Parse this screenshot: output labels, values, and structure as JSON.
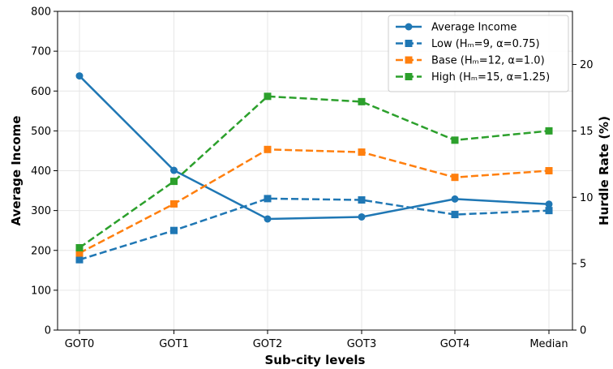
{
  "chart_data": {
    "type": "line",
    "categories": [
      "GOT0",
      "GOT1",
      "GOT2",
      "GOT3",
      "GOT4",
      "Median"
    ],
    "xlabel": "Sub-city levels",
    "ylabel": "Average Income",
    "ylabel_right": "Hurdle Rate (%)",
    "ylim": [
      0,
      800
    ],
    "ylim_right": [
      0,
      24
    ],
    "yticks": [
      "0",
      "100",
      "200",
      "300",
      "400",
      "500",
      "600",
      "700",
      "800"
    ],
    "yticks_right": [
      "0",
      "5",
      "10",
      "15",
      "20"
    ],
    "grid": true,
    "legend_position": "top-right",
    "series": [
      {
        "name": "Average Income",
        "axis": "left",
        "style": "solid",
        "marker": "circle",
        "color": "#1f77b4",
        "values": [
          638,
          401,
          279,
          284,
          329,
          316
        ]
      },
      {
        "name": "Low (Hₘ=9, α=0.75)",
        "axis": "right",
        "style": "dashed",
        "marker": "square",
        "color": "#1f77b4",
        "values": [
          5.3,
          7.5,
          9.9,
          9.8,
          8.7,
          9.0
        ]
      },
      {
        "name": "Base (Hₘ=12, α=1.0)",
        "axis": "right",
        "style": "dashed",
        "marker": "square",
        "color": "#ff7f0e",
        "values": [
          5.8,
          9.5,
          13.6,
          13.4,
          11.5,
          12.0
        ]
      },
      {
        "name": "High (Hₘ=15, α=1.25)",
        "axis": "right",
        "style": "dashed",
        "marker": "square",
        "color": "#2ca02c",
        "values": [
          6.2,
          11.2,
          17.6,
          17.2,
          14.3,
          15.0
        ]
      }
    ]
  }
}
